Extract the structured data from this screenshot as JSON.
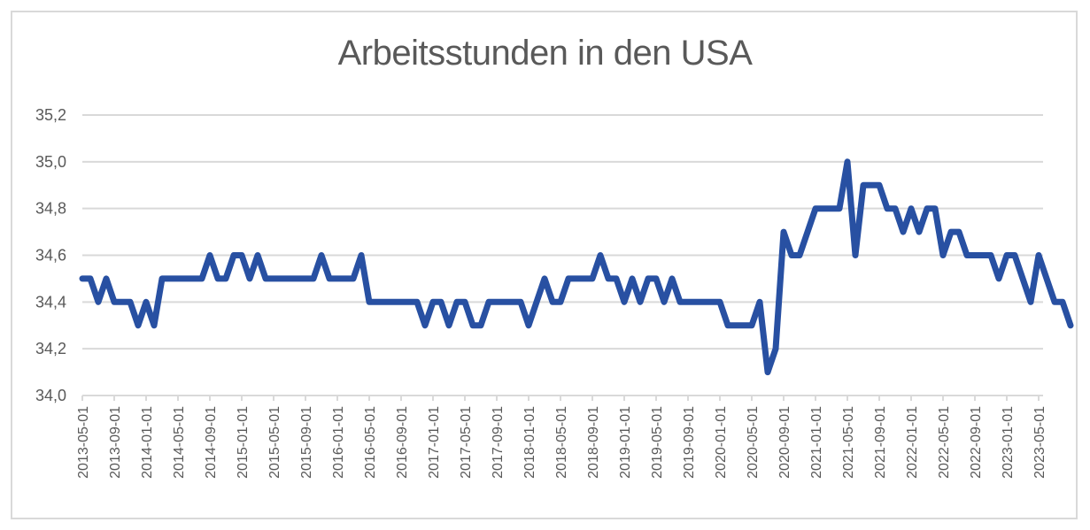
{
  "chart_data": {
    "type": "line",
    "title": "Arbeitsstunden in den USA",
    "xlabel": "",
    "ylabel": "",
    "ylim": [
      34.0,
      35.2
    ],
    "y_ticks": [
      "34,0",
      "34,2",
      "34,4",
      "34,6",
      "34,8",
      "35,0",
      "35,2"
    ],
    "y_tick_values": [
      34.0,
      34.2,
      34.4,
      34.6,
      34.8,
      35.0,
      35.2
    ],
    "x_tick_labels": [
      "2013-05-01",
      "2013-09-01",
      "2014-01-01",
      "2014-05-01",
      "2014-09-01",
      "2015-01-01",
      "2015-05-01",
      "2015-09-01",
      "2016-01-01",
      "2016-05-01",
      "2016-09-01",
      "2017-01-01",
      "2017-05-01",
      "2017-09-01",
      "2018-01-01",
      "2018-05-01",
      "2018-09-01",
      "2019-01-01",
      "2019-05-01",
      "2019-09-01",
      "2020-01-01",
      "2020-05-01",
      "2020-09-01",
      "2021-01-01",
      "2021-05-01",
      "2021-09-01",
      "2022-01-01",
      "2022-05-01",
      "2022-09-01",
      "2023-01-01",
      "2023-05-01"
    ],
    "grid": true,
    "legend": "none",
    "x_start": "2013-05-01",
    "x_end": "2023-05-01",
    "frequency": "monthly",
    "line_color": "#2850a2",
    "series": [
      {
        "name": "Arbeitsstunden",
        "values": [
          34.5,
          34.5,
          34.4,
          34.5,
          34.4,
          34.4,
          34.4,
          34.3,
          34.4,
          34.3,
          34.5,
          34.5,
          34.5,
          34.5,
          34.5,
          34.5,
          34.6,
          34.5,
          34.5,
          34.6,
          34.6,
          34.5,
          34.6,
          34.5,
          34.5,
          34.5,
          34.5,
          34.5,
          34.5,
          34.5,
          34.6,
          34.5,
          34.5,
          34.5,
          34.5,
          34.6,
          34.4,
          34.4,
          34.4,
          34.4,
          34.4,
          34.4,
          34.4,
          34.3,
          34.4,
          34.4,
          34.3,
          34.4,
          34.4,
          34.3,
          34.3,
          34.4,
          34.4,
          34.4,
          34.4,
          34.4,
          34.3,
          34.4,
          34.5,
          34.4,
          34.4,
          34.5,
          34.5,
          34.5,
          34.5,
          34.6,
          34.5,
          34.5,
          34.4,
          34.5,
          34.4,
          34.5,
          34.5,
          34.4,
          34.5,
          34.4,
          34.4,
          34.4,
          34.4,
          34.4,
          34.4,
          34.3,
          34.3,
          34.3,
          34.3,
          34.4,
          34.1,
          34.2,
          34.7,
          34.6,
          34.6,
          34.7,
          34.8,
          34.8,
          34.8,
          34.8,
          35.0,
          34.6,
          34.9,
          34.9,
          34.9,
          34.8,
          34.8,
          34.7,
          34.8,
          34.7,
          34.8,
          34.8,
          34.6,
          34.7,
          34.7,
          34.6,
          34.6,
          34.6,
          34.6,
          34.5,
          34.6,
          34.6,
          34.5,
          34.4,
          34.6,
          34.5,
          34.4,
          34.4,
          34.3
        ]
      }
    ]
  },
  "colors": {
    "line": "#2850a2",
    "grid": "#d9d9d9",
    "text": "#595959",
    "border": "#d9d9d9"
  }
}
